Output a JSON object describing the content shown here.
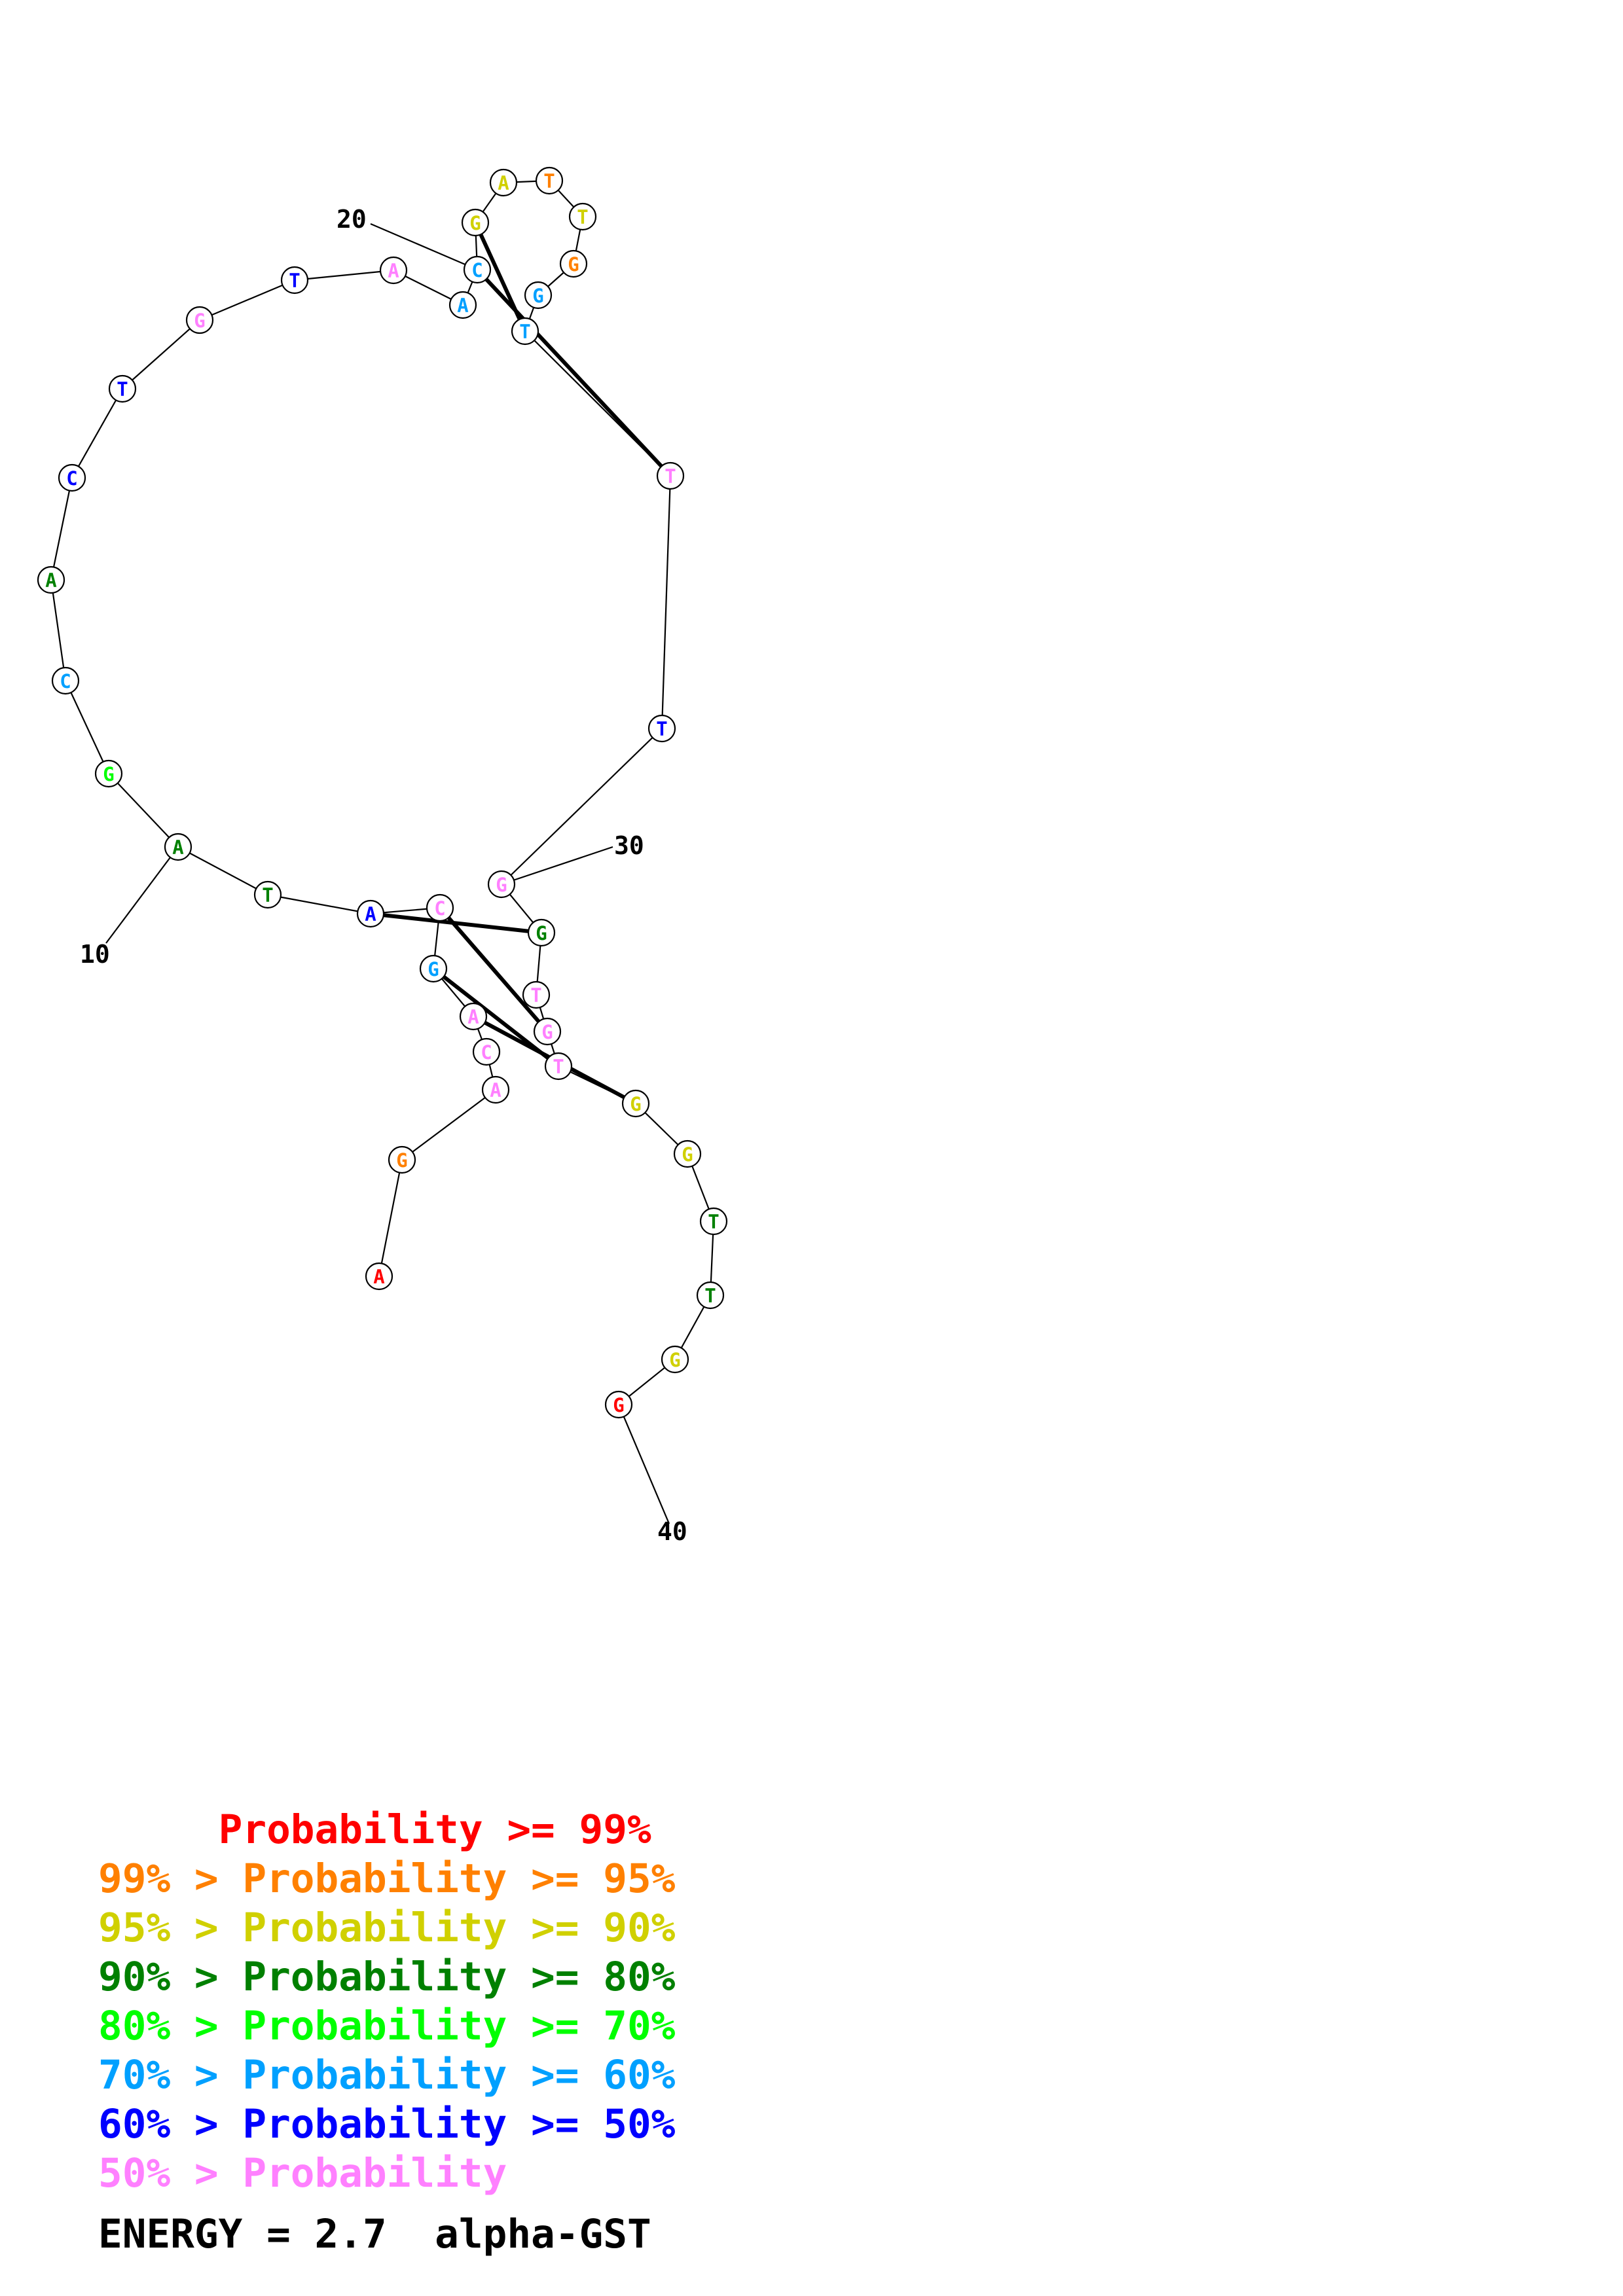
{
  "molecule": {
    "sequence": [
      {
        "base": "A",
        "color": "#ff0000"
      },
      {
        "base": "G",
        "color": "#ff8000"
      },
      {
        "base": "A",
        "color": "#ff80ff"
      },
      {
        "base": "C",
        "color": "#ff80ff"
      },
      {
        "base": "A",
        "color": "#ff80ff"
      },
      {
        "base": "G",
        "color": "#00a0ff"
      },
      {
        "base": "C",
        "color": "#ff80ff"
      },
      {
        "base": "A",
        "color": "#0000ff"
      },
      {
        "base": "T",
        "color": "#008000"
      },
      {
        "base": "A",
        "color": "#008000"
      },
      {
        "base": "G",
        "color": "#00ff00"
      },
      {
        "base": "C",
        "color": "#00a0ff"
      },
      {
        "base": "A",
        "color": "#008000"
      },
      {
        "base": "C",
        "color": "#0000ff"
      },
      {
        "base": "T",
        "color": "#0000ff"
      },
      {
        "base": "G",
        "color": "#ff80ff"
      },
      {
        "base": "T",
        "color": "#0000ff"
      },
      {
        "base": "A",
        "color": "#ff80ff"
      },
      {
        "base": "A",
        "color": "#00a0ff"
      },
      {
        "base": "C",
        "color": "#00a0ff"
      },
      {
        "base": "G",
        "color": "#d0d000"
      },
      {
        "base": "A",
        "color": "#d0d000"
      },
      {
        "base": "T",
        "color": "#ff8000"
      },
      {
        "base": "T",
        "color": "#d0d000"
      },
      {
        "base": "G",
        "color": "#ff8000"
      },
      {
        "base": "G",
        "color": "#00a0ff"
      },
      {
        "base": "T",
        "color": "#00a0ff"
      },
      {
        "base": "T",
        "color": "#ff80ff"
      },
      {
        "base": "T",
        "color": "#0000ff"
      },
      {
        "base": "G",
        "color": "#ff80ff"
      },
      {
        "base": "G",
        "color": "#008000"
      },
      {
        "base": "T",
        "color": "#ff80ff"
      },
      {
        "base": "G",
        "color": "#ff80ff"
      },
      {
        "base": "T",
        "color": "#ff80ff"
      },
      {
        "base": "G",
        "color": "#d0d000"
      },
      {
        "base": "G",
        "color": "#d0d000"
      },
      {
        "base": "T",
        "color": "#008000"
      },
      {
        "base": "T",
        "color": "#008000"
      },
      {
        "base": "G",
        "color": "#d0d000"
      },
      {
        "base": "G",
        "color": "#ff0000"
      }
    ],
    "base_pairs": [
      [
        4,
        34
      ],
      [
        5,
        33
      ],
      [
        6,
        32
      ],
      [
        7,
        30
      ],
      [
        19,
        27
      ],
      [
        20,
        26
      ]
    ],
    "position_labels": [
      {
        "position": 10,
        "text": "10"
      },
      {
        "position": 20,
        "text": "20"
      },
      {
        "position": 30,
        "text": "30"
      },
      {
        "position": 40,
        "text": "40"
      }
    ]
  },
  "legend": [
    {
      "text": "     Probability >= 99%",
      "color": "#ff0000"
    },
    {
      "text": "99% > Probability >= 95%",
      "color": "#ff8000"
    },
    {
      "text": "95% > Probability >= 90%",
      "color": "#d0d000"
    },
    {
      "text": "90% > Probability >= 80%",
      "color": "#008000"
    },
    {
      "text": "80% > Probability >= 70%",
      "color": "#00ff00"
    },
    {
      "text": "70% > Probability >= 60%",
      "color": "#00a0ff"
    },
    {
      "text": "60% > Probability >= 50%",
      "color": "#0000ff"
    },
    {
      "text": "50% > Probability",
      "color": "#ff80ff"
    }
  ],
  "energy_text": "ENERGY = 2.7  alpha-GST"
}
